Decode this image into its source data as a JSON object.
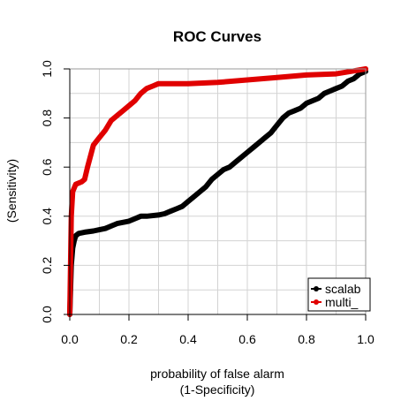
{
  "chart_data": {
    "type": "line",
    "title": "ROC Curves",
    "xlabel": [
      "probability of false alarm",
      "(1-Specificity)"
    ],
    "ylabel": [
      "(Sensitivity)"
    ],
    "xlim": [
      0,
      1
    ],
    "ylim": [
      0,
      1
    ],
    "x_ticks": [
      "0.0",
      "0.2",
      "0.4",
      "0.6",
      "0.8",
      "1.0"
    ],
    "y_ticks": [
      "0.0",
      "0.2",
      "0.4",
      "0.6",
      "0.8",
      "1.0"
    ],
    "grid": true,
    "legend_position": "bottom-right",
    "series": [
      {
        "name": "scalab",
        "color": "#000000",
        "x": [
          0,
          0.005,
          0.01,
          0.015,
          0.02,
          0.03,
          0.05,
          0.08,
          0.1,
          0.12,
          0.14,
          0.16,
          0.2,
          0.22,
          0.24,
          0.26,
          0.3,
          0.32,
          0.34,
          0.36,
          0.38,
          0.4,
          0.42,
          0.44,
          0.46,
          0.48,
          0.5,
          0.52,
          0.54,
          0.56,
          0.58,
          0.6,
          0.62,
          0.64,
          0.66,
          0.68,
          0.7,
          0.72,
          0.74,
          0.76,
          0.78,
          0.8,
          0.82,
          0.84,
          0.86,
          0.88,
          0.9,
          0.92,
          0.94,
          0.96,
          0.98,
          1.0
        ],
        "y": [
          0,
          0.2,
          0.27,
          0.3,
          0.32,
          0.33,
          0.335,
          0.34,
          0.345,
          0.35,
          0.36,
          0.37,
          0.38,
          0.39,
          0.4,
          0.4,
          0.405,
          0.41,
          0.42,
          0.43,
          0.44,
          0.46,
          0.48,
          0.5,
          0.52,
          0.55,
          0.57,
          0.59,
          0.6,
          0.62,
          0.64,
          0.66,
          0.68,
          0.7,
          0.72,
          0.74,
          0.77,
          0.8,
          0.82,
          0.83,
          0.84,
          0.86,
          0.87,
          0.88,
          0.9,
          0.91,
          0.92,
          0.93,
          0.95,
          0.96,
          0.98,
          0.99
        ]
      },
      {
        "name": "multi_",
        "color": "#e00000",
        "x": [
          0,
          0.005,
          0.01,
          0.02,
          0.04,
          0.05,
          0.06,
          0.08,
          0.1,
          0.12,
          0.14,
          0.16,
          0.18,
          0.2,
          0.22,
          0.24,
          0.26,
          0.28,
          0.3,
          0.35,
          0.4,
          0.5,
          0.6,
          0.7,
          0.8,
          0.9,
          0.95,
          1.0
        ],
        "y": [
          0,
          0.4,
          0.5,
          0.53,
          0.54,
          0.55,
          0.6,
          0.69,
          0.72,
          0.75,
          0.79,
          0.81,
          0.83,
          0.85,
          0.87,
          0.9,
          0.92,
          0.93,
          0.94,
          0.94,
          0.94,
          0.945,
          0.955,
          0.965,
          0.975,
          0.98,
          0.99,
          1.0
        ]
      }
    ]
  }
}
